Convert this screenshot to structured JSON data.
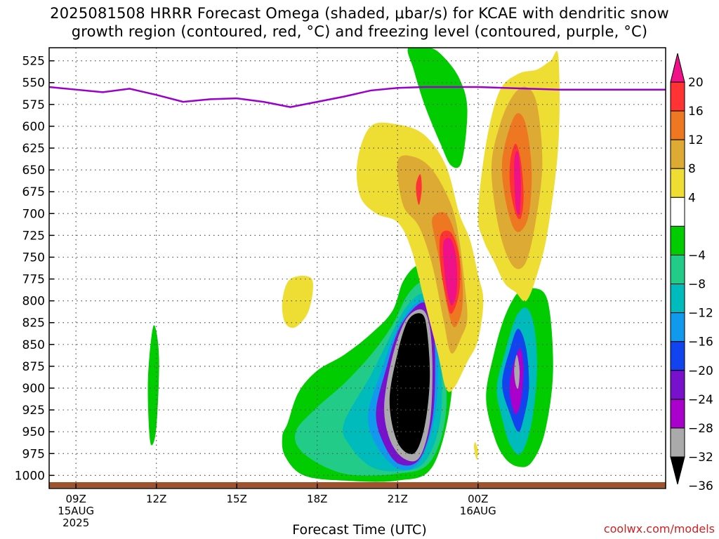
{
  "title": {
    "line1": "2025081508 HRRR Forecast Omega (shaded, μbar/s) for KCAE with dendritic snow",
    "line2": "growth region (contoured, red, °C) and freezing level (contoured, purple, °C)"
  },
  "credit": "coolwx.com/models",
  "chart_data": {
    "type": "heatmap",
    "xlabel": "Forecast Time (UTC)",
    "ylabel": "",
    "x_unit": "hours since 2025-08-15 08Z",
    "xlim": [
      0,
      23
    ],
    "y_scale": "pressure (mb), top 510 to bottom 1015",
    "ylim": [
      1015,
      510
    ],
    "y_ticks": [
      525,
      550,
      575,
      600,
      625,
      650,
      675,
      700,
      725,
      750,
      775,
      800,
      825,
      850,
      875,
      900,
      925,
      950,
      975,
      1000
    ],
    "x_ticks": [
      {
        "x": 1,
        "label": "09Z",
        "label2": "15AUG",
        "label3": "2025"
      },
      {
        "x": 4,
        "label": "12Z"
      },
      {
        "x": 7,
        "label": "15Z"
      },
      {
        "x": 10,
        "label": "18Z"
      },
      {
        "x": 13,
        "label": "21Z"
      },
      {
        "x": 16,
        "label": "00Z",
        "label2": "16AUG"
      }
    ],
    "grid": true,
    "colorbar": {
      "labels": [
        "20",
        "16",
        "12",
        "8",
        "4",
        "−4",
        "−8",
        "−12",
        "−16",
        "−20",
        "−24",
        "−28",
        "−32",
        "−36"
      ],
      "colors_top_to_bottom": [
        "#ee1188",
        "#ff3333",
        "#ee7722",
        "#ddaa33",
        "#ee dd33",
        "#ffffff",
        "#00cc00",
        "#22cc88",
        "#00bbbb",
        "#1199ee",
        "#1144ee",
        "#7711cc",
        "#aa00cc",
        "#aaaaaa",
        "#000000"
      ]
    },
    "freezing_level": {
      "name": "freezing level",
      "color": "#9900cc",
      "x": [
        0,
        1,
        2,
        3,
        4,
        5,
        6,
        7,
        8,
        9,
        10,
        11,
        12,
        13,
        14,
        15,
        16,
        17,
        18,
        19,
        20,
        21,
        22,
        23
      ],
      "y": [
        555,
        558,
        561,
        557,
        564,
        572,
        569,
        568,
        572,
        578,
        572,
        566,
        559,
        556,
        555,
        555,
        555,
        556,
        557,
        558,
        558,
        558,
        558,
        558
      ]
    },
    "omega_regions": [
      {
        "id": "descent-main-green",
        "value": -4,
        "x": [
          8.9,
          9.3,
          10.0,
          11.0,
          12.0,
          12.8,
          13.2,
          13.7,
          14.2,
          14.5,
          14.9,
          15.0,
          14.3,
          13.0,
          11.0,
          9.5,
          8.8,
          8.7
        ],
        "y": [
          940,
          905,
          880,
          862,
          838,
          812,
          778,
          760,
          762,
          782,
          830,
          910,
          990,
          1006,
          1006,
          1000,
          978,
          955
        ]
      },
      {
        "id": "descent-main-teal",
        "value": -8,
        "x": [
          9.2,
          10.0,
          11.0,
          12.0,
          12.8,
          13.4,
          14.0,
          14.4,
          14.7,
          14.8,
          14.2,
          13.0,
          11.0,
          9.5
        ],
        "y": [
          950,
          922,
          895,
          862,
          828,
          792,
          778,
          800,
          850,
          930,
          985,
          998,
          998,
          975
        ]
      },
      {
        "id": "descent-main-cyan",
        "value": -12,
        "x": [
          11.0,
          12.0,
          12.7,
          13.3,
          13.9,
          14.3,
          14.6,
          14.6,
          14.0,
          13.0,
          12.0,
          11.2
        ],
        "y": [
          940,
          885,
          842,
          808,
          792,
          808,
          855,
          935,
          985,
          995,
          990,
          965
        ]
      },
      {
        "id": "descent-main-blue",
        "value": -16,
        "x": [
          11.9,
          12.4,
          12.9,
          13.5,
          14.0,
          14.3,
          14.5,
          14.4,
          13.8,
          13.0,
          12.2
        ],
        "y": [
          930,
          880,
          838,
          808,
          800,
          815,
          860,
          930,
          985,
          992,
          965
        ]
      },
      {
        "id": "descent-main-purple",
        "value": -24,
        "x": [
          12.2,
          12.6,
          13.0,
          13.5,
          14.0,
          14.3,
          14.4,
          14.3,
          13.8,
          13.0,
          12.4
        ],
        "y": [
          925,
          875,
          836,
          812,
          802,
          820,
          870,
          935,
          982,
          986,
          958
        ]
      },
      {
        "id": "descent-main-gray",
        "value": -32,
        "x": [
          12.5,
          12.8,
          13.3,
          13.9,
          14.2,
          14.3,
          14.2,
          13.8,
          13.2,
          12.7
        ],
        "y": [
          920,
          865,
          822,
          810,
          830,
          880,
          940,
          980,
          980,
          958
        ]
      },
      {
        "id": "descent-main-black",
        "value": -36,
        "x": [
          12.7,
          13.0,
          13.4,
          13.9,
          14.1,
          14.2,
          14.0,
          13.6,
          13.0
        ],
        "y": [
          915,
          860,
          822,
          815,
          835,
          890,
          945,
          975,
          962
        ]
      },
      {
        "id": "descent-right-green",
        "value": -4,
        "x": [
          16.3,
          16.6,
          17.0,
          17.5,
          18.0,
          18.6,
          18.8,
          18.5,
          18.0,
          17.5,
          17.0,
          16.6
        ],
        "y": [
          910,
          860,
          818,
          790,
          785,
          800,
          880,
          950,
          985,
          990,
          980,
          955
        ]
      },
      {
        "id": "descent-right-teal",
        "value": -12,
        "x": [
          16.7,
          17.0,
          17.4,
          17.8,
          18.1,
          18.2,
          18.0,
          17.6,
          17.2,
          16.9
        ],
        "y": [
          900,
          860,
          820,
          808,
          830,
          880,
          940,
          975,
          965,
          935
        ]
      },
      {
        "id": "descent-right-blue",
        "value": -20,
        "x": [
          16.9,
          17.2,
          17.5,
          17.8,
          17.9,
          17.7,
          17.5,
          17.2
        ],
        "y": [
          895,
          855,
          832,
          855,
          900,
          935,
          950,
          930
        ]
      },
      {
        "id": "descent-right-purple",
        "value": -28,
        "x": [
          17.2,
          17.4,
          17.6,
          17.7,
          17.6,
          17.4,
          17.2
        ],
        "y": [
          890,
          865,
          855,
          880,
          915,
          930,
          910
        ]
      },
      {
        "id": "descent-right-gray",
        "value": -32,
        "x": [
          17.35,
          17.45,
          17.55,
          17.5,
          17.4
        ],
        "y": [
          878,
          862,
          880,
          900,
          895
        ]
      },
      {
        "id": "descent-left-green",
        "value": -4,
        "x": [
          3.7,
          3.9,
          4.1,
          4.0,
          3.8,
          3.7
        ],
        "y": [
          880,
          828,
          865,
          945,
          965,
          930
        ]
      },
      {
        "id": "descent-top-green",
        "value": -4,
        "x": [
          13.4,
          14.2,
          14.7,
          15.3,
          15.6,
          15.4,
          15.0,
          14.6,
          14.0,
          13.6
        ],
        "y": [
          510,
          510,
          520,
          545,
          580,
          640,
          645,
          620,
          575,
          535
        ]
      },
      {
        "id": "ascent-small-yellow",
        "value": 4,
        "x": [
          8.7,
          9.0,
          9.8,
          9.7,
          9.2,
          8.8
        ],
        "y": [
          800,
          775,
          775,
          810,
          830,
          825
        ]
      },
      {
        "id": "ascent-tiny-yellow",
        "value": 4,
        "x": [
          15.9,
          16.0,
          15.95,
          15.85
        ],
        "y": [
          962,
          972,
          982,
          968
        ]
      },
      {
        "id": "ascent-mid-yellow",
        "value": 4,
        "x": [
          11.5,
          12.0,
          13.0,
          14.0,
          14.8,
          15.3,
          15.7,
          16.0,
          16.2,
          16.0,
          15.6,
          15.1,
          14.8,
          14.5,
          14.0,
          13.5,
          13.0,
          12.2,
          11.6
        ],
        "y": [
          640,
          600,
          598,
          610,
          645,
          700,
          730,
          770,
          800,
          845,
          870,
          900,
          900,
          860,
          800,
          740,
          710,
          700,
          680
        ]
      },
      {
        "id": "ascent-mid-orange",
        "value": 8,
        "x": [
          13.0,
          13.6,
          14.3,
          15.0,
          15.3,
          15.5,
          15.6,
          15.4,
          15.0,
          14.7,
          14.3,
          13.8,
          13.2
        ],
        "y": [
          640,
          635,
          650,
          690,
          730,
          780,
          820,
          840,
          860,
          820,
          760,
          715,
          690
        ]
      },
      {
        "id": "ascent-mid-darkorange",
        "value": 12,
        "x": [
          14.3,
          14.8,
          15.2,
          15.4,
          15.4,
          15.1,
          14.8,
          14.6,
          14.4
        ],
        "y": [
          705,
          700,
          730,
          770,
          810,
          830,
          800,
          760,
          730
        ]
      },
      {
        "id": "ascent-mid-red",
        "value": 16,
        "x": [
          14.6,
          15.0,
          15.3,
          15.3,
          15.0,
          14.8,
          14.6
        ],
        "y": [
          725,
          722,
          750,
          790,
          815,
          795,
          760
        ]
      },
      {
        "id": "ascent-mid-magenta",
        "value": 20,
        "x": [
          14.7,
          15.0,
          15.2,
          15.2,
          15.0,
          14.8
        ],
        "y": [
          735,
          730,
          755,
          790,
          805,
          780
        ]
      },
      {
        "id": "ascent-mid-small-red",
        "value": 16,
        "x": [
          13.7,
          13.85,
          13.9,
          13.8,
          13.7
        ],
        "y": [
          665,
          655,
          672,
          690,
          678
        ]
      },
      {
        "id": "ascent-right-yellow",
        "value": 4,
        "x": [
          16.0,
          16.3,
          16.8,
          17.5,
          18.2,
          18.7,
          19.0,
          19.0,
          18.6,
          18.2,
          17.8,
          17.4,
          17.0,
          16.6,
          16.2
        ],
        "y": [
          700,
          620,
          560,
          540,
          535,
          525,
          520,
          620,
          720,
          770,
          800,
          790,
          780,
          755,
          730
        ]
      },
      {
        "id": "ascent-right-orange",
        "value": 8,
        "x": [
          16.5,
          16.8,
          17.3,
          17.8,
          18.2,
          18.4,
          18.2,
          17.8,
          17.3,
          16.8
        ],
        "y": [
          650,
          600,
          565,
          555,
          575,
          640,
          700,
          755,
          760,
          720
        ]
      },
      {
        "id": "ascent-right-darkorange",
        "value": 12,
        "x": [
          16.9,
          17.2,
          17.5,
          17.8,
          18.0,
          17.9,
          17.6,
          17.3,
          17.0
        ],
        "y": [
          640,
          600,
          585,
          600,
          650,
          700,
          720,
          715,
          680
        ]
      },
      {
        "id": "ascent-right-red",
        "value": 16,
        "x": [
          17.2,
          17.4,
          17.6,
          17.7,
          17.6,
          17.4,
          17.2
        ],
        "y": [
          640,
          620,
          640,
          680,
          705,
          700,
          670
        ]
      },
      {
        "id": "ascent-right-magenta",
        "value": 20,
        "x": [
          17.35,
          17.5,
          17.6,
          17.55,
          17.4
        ],
        "y": [
          640,
          630,
          665,
          700,
          690
        ]
      }
    ]
  }
}
